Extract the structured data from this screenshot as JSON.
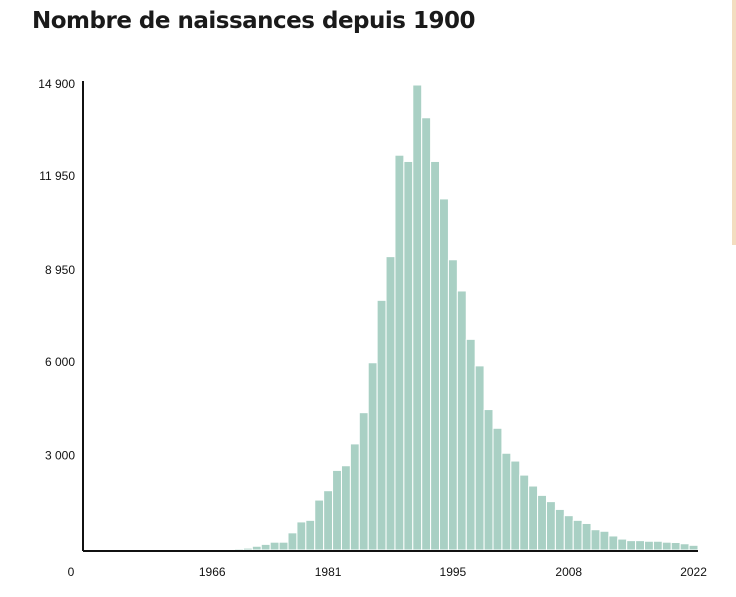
{
  "chart_data": {
    "type": "bar",
    "title": "Nombre de naissances depuis 1900",
    "categories": [
      "0",
      null,
      null,
      null,
      null,
      null,
      null,
      null,
      null,
      null,
      null,
      null,
      null,
      null,
      "1966",
      null,
      null,
      null,
      null,
      null,
      null,
      null,
      null,
      null,
      null,
      null,
      null,
      "1981",
      null,
      null,
      null,
      null,
      null,
      null,
      null,
      null,
      null,
      null,
      null,
      null,
      null,
      "1995",
      null,
      null,
      null,
      null,
      null,
      null,
      null,
      null,
      null,
      null,
      null,
      null,
      "2008",
      null,
      null,
      null,
      null,
      null,
      null,
      null,
      null,
      null,
      null,
      null,
      null,
      null,
      "2022"
    ],
    "values": [
      1,
      1,
      2,
      2,
      3,
      3,
      4,
      5,
      5,
      6,
      8,
      10,
      10,
      15,
      20,
      25,
      30,
      40,
      60,
      120,
      180,
      250,
      250,
      550,
      900,
      950,
      1600,
      1900,
      2550,
      2700,
      3400,
      4400,
      6000,
      8000,
      9400,
      12650,
      12450,
      14900,
      13850,
      12450,
      11250,
      9300,
      8300,
      6750,
      5900,
      4500,
      3900,
      3100,
      2850,
      2400,
      2050,
      1750,
      1550,
      1300,
      1100,
      950,
      850,
      650,
      600,
      450,
      350,
      300,
      300,
      280,
      280,
      250,
      240,
      200,
      150
    ],
    "color": "#a9d0c4",
    "ylim": [
      0,
      14900
    ],
    "yticks": [
      {
        "value": 3000,
        "label": "3 000"
      },
      {
        "value": 6000,
        "label": "6 000"
      },
      {
        "value": 8950,
        "label": "8 950"
      },
      {
        "value": 11950,
        "label": "11 950"
      },
      {
        "value": 14900,
        "label": "14 900"
      }
    ],
    "grid": false
  }
}
